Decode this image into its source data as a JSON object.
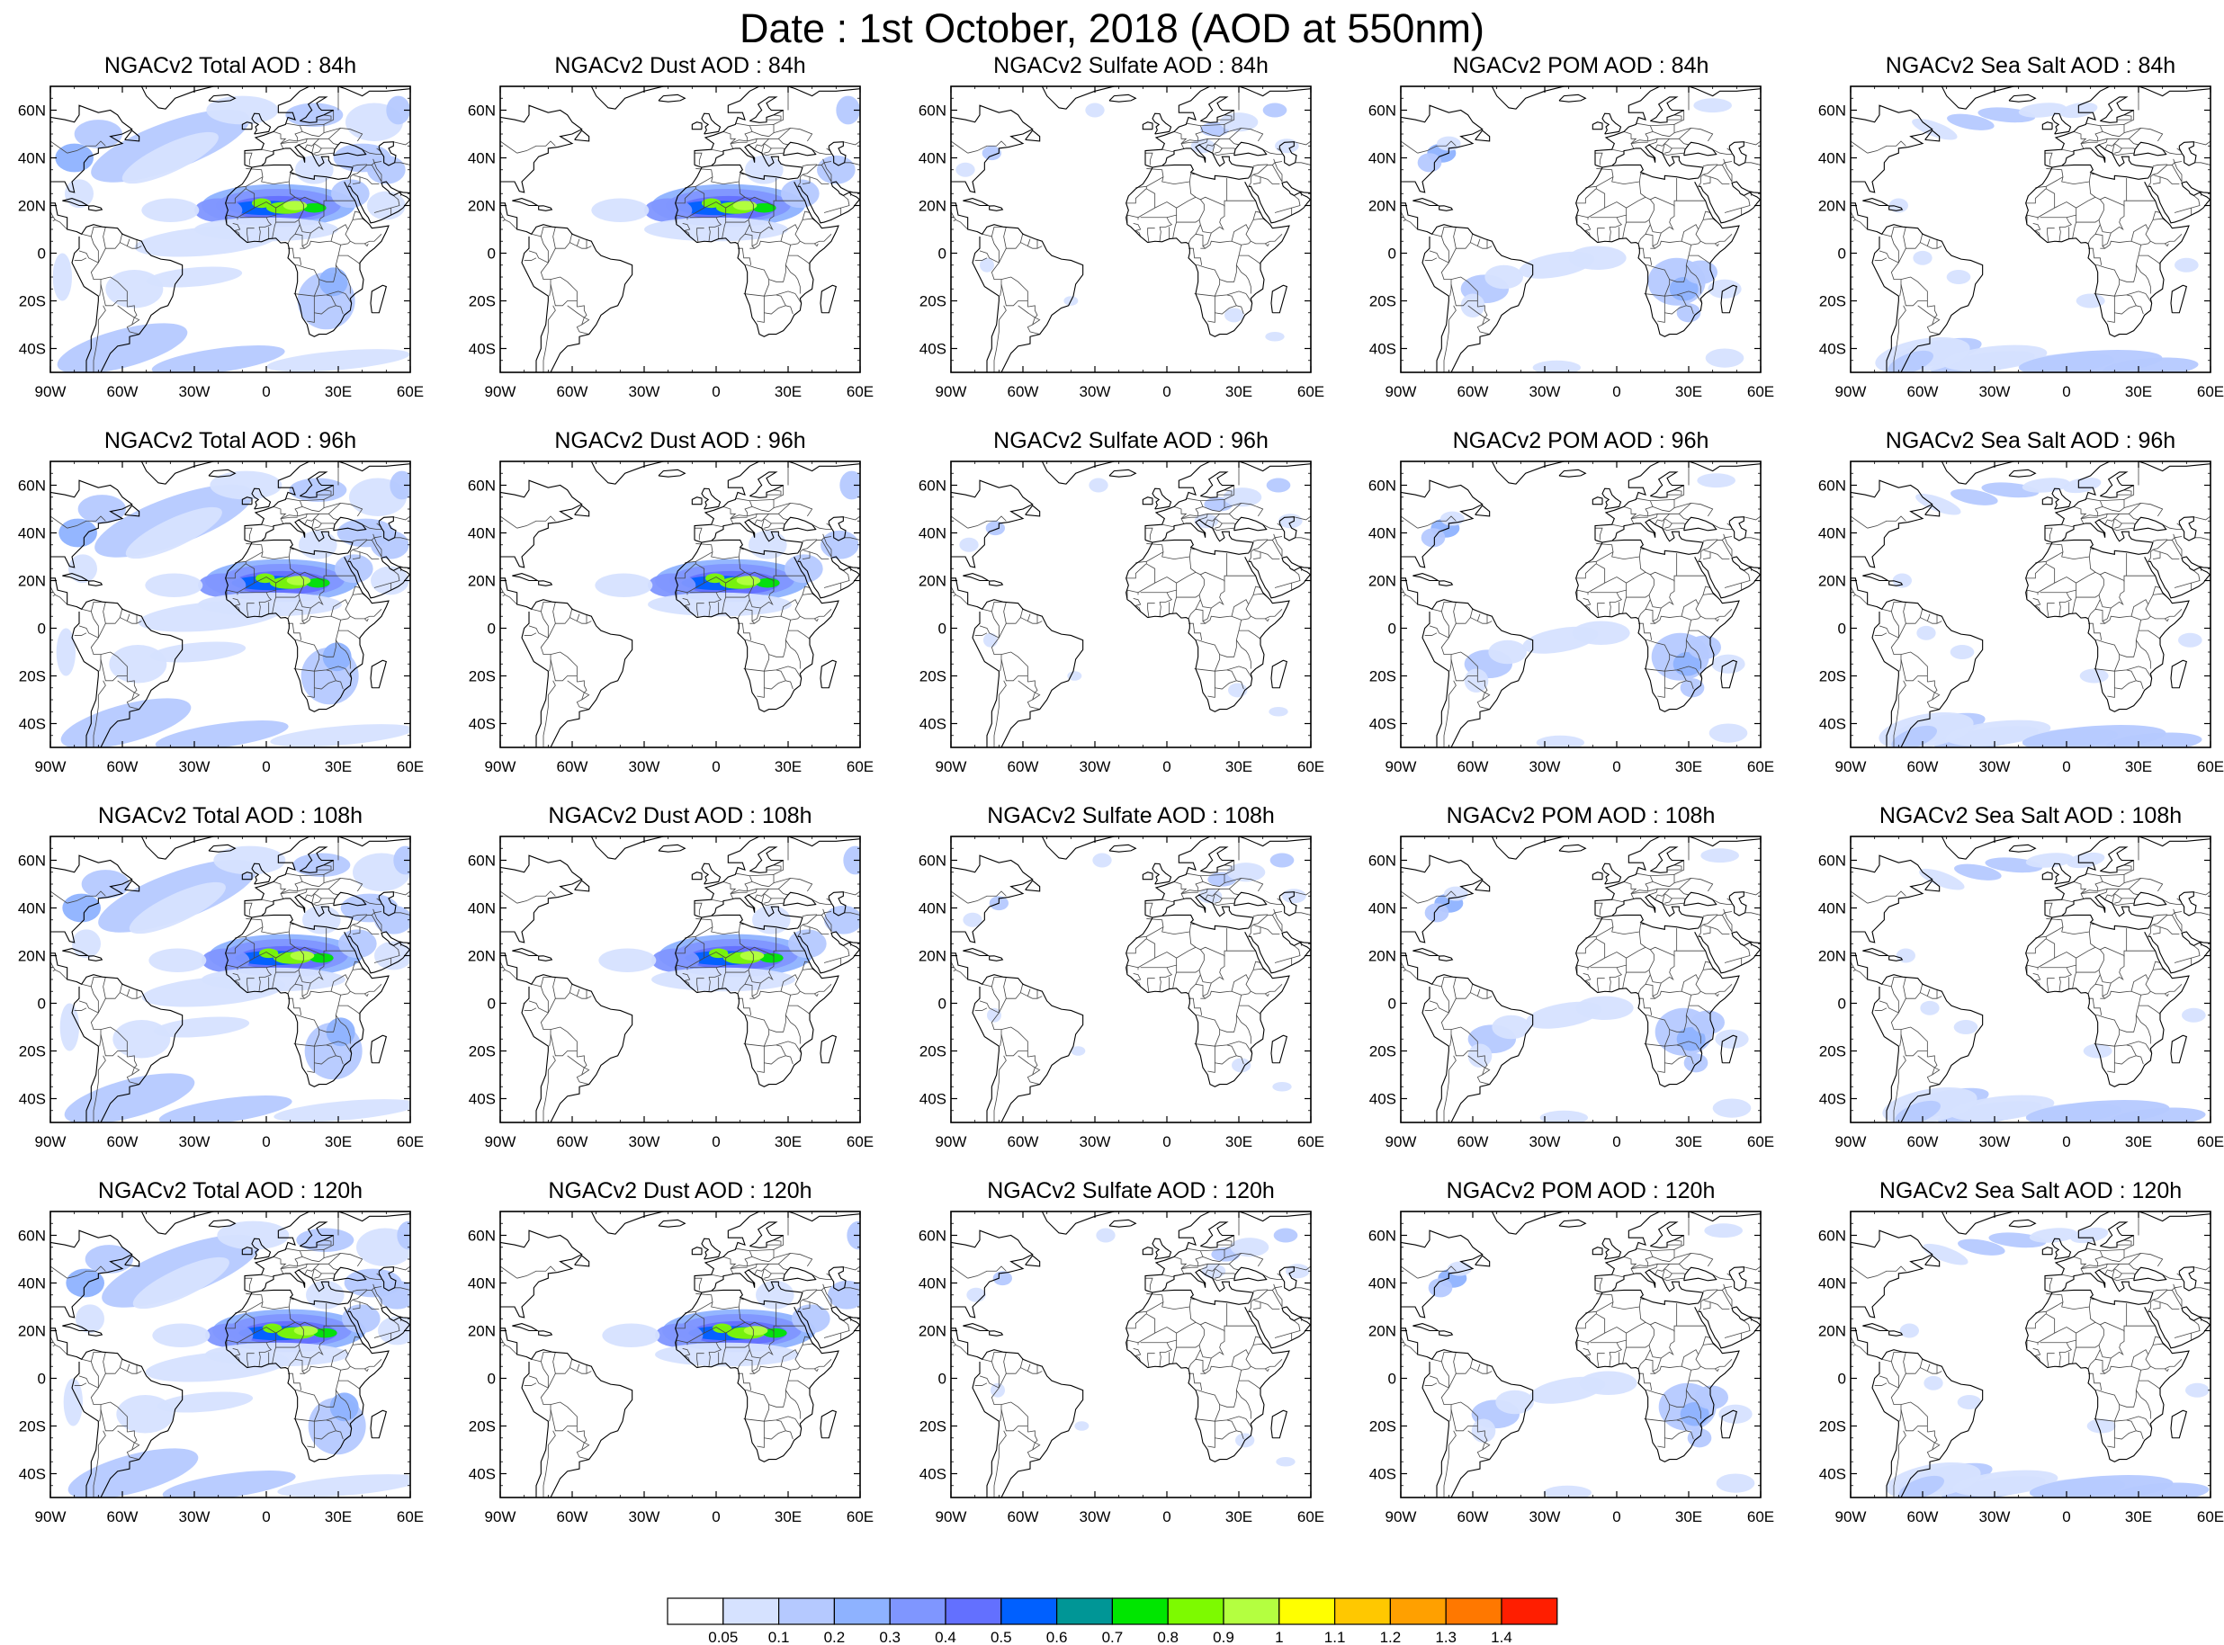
{
  "title": "Date : 1st October, 2018 (AOD at 550nm)",
  "panels": [
    [
      "NGACv2 Total AOD : 84h",
      "NGACv2 Dust AOD : 84h",
      "NGACv2 Sulfate AOD : 84h",
      "NGACv2 POM AOD : 84h",
      "NGACv2 Sea Salt AOD : 84h"
    ],
    [
      "NGACv2 Total AOD : 96h",
      "NGACv2 Dust AOD : 96h",
      "NGACv2 Sulfate AOD : 96h",
      "NGACv2 POM AOD : 96h",
      "NGACv2 Sea Salt AOD : 96h"
    ],
    [
      "NGACv2 Total AOD : 108h",
      "NGACv2 Dust AOD : 108h",
      "NGACv2 Sulfate AOD : 108h",
      "NGACv2 POM AOD : 108h",
      "NGACv2 Sea Salt AOD : 108h"
    ],
    [
      "NGACv2 Total AOD : 120h",
      "NGACv2 Dust AOD : 120h",
      "NGACv2 Sulfate AOD : 120h",
      "NGACv2 POM AOD : 120h",
      "NGACv2 Sea Salt  AOD : 120h"
    ]
  ],
  "lat_ticks": [
    "60N",
    "40N",
    "20N",
    "0",
    "20S",
    "40S"
  ],
  "lon_ticks": [
    "90W",
    "60W",
    "30W",
    "0",
    "30E",
    "60E"
  ],
  "map_extent": {
    "lon": [
      -90,
      60
    ],
    "lat": [
      -50,
      70
    ]
  },
  "colorbar": {
    "labels": [
      "0.05",
      "0.1",
      "0.2",
      "0.3",
      "0.4",
      "0.5",
      "0.6",
      "0.7",
      "0.8",
      "0.9",
      "1",
      "1.1",
      "1.2",
      "1.3",
      "1.4"
    ],
    "colors": [
      "#ffffff",
      "#d6e2ff",
      "#b5c9ff",
      "#8eb2ff",
      "#7f96ff",
      "#6370ff",
      "#0060ff",
      "#009696",
      "#00e600",
      "#7dfa00",
      "#b4ff40",
      "#ffff00",
      "#ffc800",
      "#ffa000",
      "#ff7800",
      "#ff1e00"
    ]
  }
}
